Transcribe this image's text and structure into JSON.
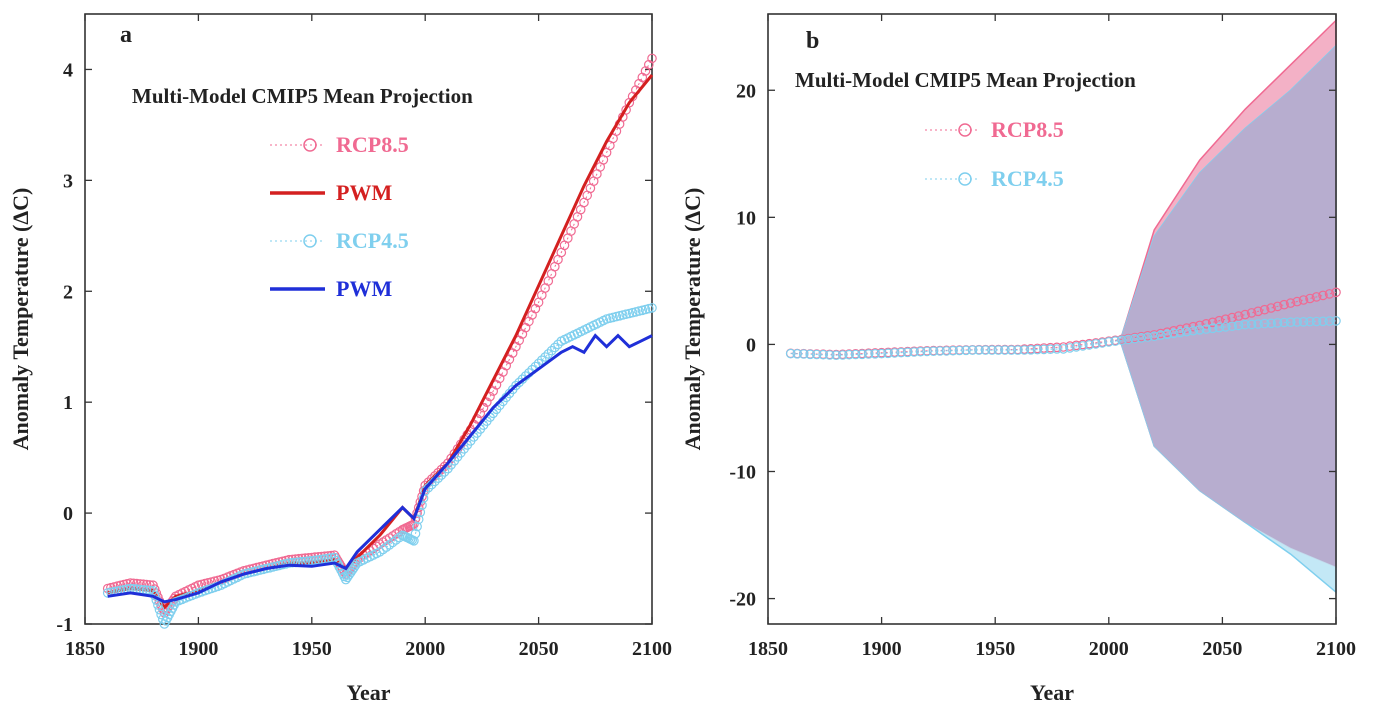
{
  "chart_data": [
    {
      "panel": "a",
      "type": "line",
      "title": "Multi-Model CMIP5 Mean Projection",
      "xlabel": "Year",
      "ylabel": "Anomaly Temperature (ΔC)",
      "xlim": [
        1850,
        2100
      ],
      "ylim": [
        -1,
        4.5
      ],
      "xticks": [
        1850,
        1900,
        1950,
        2000,
        2050,
        2100
      ],
      "yticks": [
        -1,
        0,
        1,
        2,
        3,
        4
      ],
      "legend": "upper-left",
      "series": [
        {
          "name": "RCP8.5",
          "color": "#f06a92",
          "style": "circles",
          "x": [
            1860,
            1870,
            1880,
            1885,
            1890,
            1900,
            1910,
            1920,
            1930,
            1940,
            1950,
            1960,
            1965,
            1970,
            1980,
            1990,
            1995,
            2000,
            2010,
            2020,
            2030,
            2040,
            2050,
            2060,
            2070,
            2080,
            2090,
            2100
          ],
          "y": [
            -0.68,
            -0.63,
            -0.65,
            -0.9,
            -0.75,
            -0.65,
            -0.6,
            -0.52,
            -0.47,
            -0.42,
            -0.4,
            -0.38,
            -0.55,
            -0.42,
            -0.28,
            -0.15,
            -0.1,
            0.25,
            0.45,
            0.75,
            1.1,
            1.5,
            1.9,
            2.35,
            2.8,
            3.25,
            3.7,
            4.1
          ]
        },
        {
          "name": "PWM",
          "color": "#d42020",
          "style": "line",
          "x": [
            1860,
            1870,
            1880,
            1885,
            1890,
            1900,
            1910,
            1920,
            1930,
            1940,
            1950,
            1960,
            1965,
            1970,
            1980,
            1990,
            1995,
            2000,
            2010,
            2020,
            2030,
            2040,
            2050,
            2060,
            2070,
            2080,
            2090,
            2100
          ],
          "y": [
            -0.72,
            -0.68,
            -0.7,
            -0.85,
            -0.75,
            -0.7,
            -0.62,
            -0.55,
            -0.5,
            -0.45,
            -0.45,
            -0.42,
            -0.5,
            -0.4,
            -0.2,
            0.05,
            -0.05,
            0.25,
            0.45,
            0.8,
            1.2,
            1.6,
            2.05,
            2.5,
            2.95,
            3.35,
            3.7,
            3.95
          ]
        },
        {
          "name": "RCP4.5",
          "color": "#7fcfee",
          "style": "circles",
          "x": [
            1860,
            1870,
            1880,
            1885,
            1890,
            1900,
            1910,
            1920,
            1930,
            1940,
            1950,
            1960,
            1965,
            1970,
            1980,
            1990,
            1995,
            2000,
            2010,
            2020,
            2030,
            2040,
            2050,
            2060,
            2070,
            2080,
            2090,
            2100
          ],
          "y": [
            -0.72,
            -0.68,
            -0.7,
            -1.0,
            -0.8,
            -0.72,
            -0.65,
            -0.55,
            -0.5,
            -0.45,
            -0.43,
            -0.4,
            -0.6,
            -0.45,
            -0.35,
            -0.2,
            -0.25,
            0.2,
            0.4,
            0.65,
            0.9,
            1.15,
            1.35,
            1.55,
            1.65,
            1.75,
            1.8,
            1.85
          ]
        },
        {
          "name": "PWM",
          "color": "#1f2fd8",
          "style": "line",
          "x": [
            1860,
            1870,
            1880,
            1885,
            1890,
            1900,
            1910,
            1920,
            1930,
            1940,
            1950,
            1960,
            1965,
            1970,
            1980,
            1990,
            1995,
            2000,
            2010,
            2020,
            2030,
            2040,
            2050,
            2060,
            2065,
            2070,
            2075,
            2080,
            2085,
            2090,
            2095,
            2100
          ],
          "y": [
            -0.75,
            -0.72,
            -0.75,
            -0.8,
            -0.78,
            -0.72,
            -0.62,
            -0.55,
            -0.5,
            -0.47,
            -0.48,
            -0.45,
            -0.5,
            -0.35,
            -0.15,
            0.05,
            -0.05,
            0.22,
            0.45,
            0.7,
            0.95,
            1.15,
            1.3,
            1.45,
            1.5,
            1.45,
            1.6,
            1.5,
            1.6,
            1.5,
            1.55,
            1.6
          ]
        }
      ]
    },
    {
      "panel": "b",
      "type": "area",
      "title": "Multi-Model CMIP5 Mean Projection",
      "xlabel": "Year",
      "ylabel": "Anomaly Temperature (ΔC)",
      "xlim": [
        1850,
        2100
      ],
      "ylim": [
        -22,
        26
      ],
      "xticks": [
        1850,
        1900,
        1950,
        2000,
        2050,
        2100
      ],
      "yticks": [
        -20,
        -10,
        0,
        10,
        20
      ],
      "legend": "upper-left",
      "series": [
        {
          "name": "RCP8.5",
          "color": "#f06a92",
          "style": "circles",
          "x": [
            1860,
            1880,
            1900,
            1920,
            1940,
            1960,
            1980,
            2000,
            2020,
            2040,
            2060,
            2080,
            2100
          ],
          "y": [
            -0.7,
            -0.8,
            -0.65,
            -0.5,
            -0.42,
            -0.4,
            -0.2,
            0.25,
            0.75,
            1.5,
            2.35,
            3.25,
            4.1
          ],
          "band_x": [
            2005,
            2020,
            2040,
            2060,
            2080,
            2100
          ],
          "band_upper": [
            0.3,
            9,
            14.5,
            18.5,
            22,
            25.5
          ],
          "band_lower": [
            0.3,
            -8,
            -11.5,
            -14,
            -16,
            -17.5
          ]
        },
        {
          "name": "RCP4.5",
          "color": "#7fcfee",
          "style": "circles",
          "x": [
            1860,
            1880,
            1900,
            1920,
            1940,
            1960,
            1980,
            2000,
            2020,
            2040,
            2060,
            2080,
            2100
          ],
          "y": [
            -0.72,
            -0.85,
            -0.72,
            -0.55,
            -0.45,
            -0.45,
            -0.35,
            0.2,
            0.65,
            1.15,
            1.55,
            1.75,
            1.85
          ],
          "band_x": [
            2005,
            2020,
            2040,
            2060,
            2080,
            2100
          ],
          "band_upper": [
            0.3,
            8.5,
            13.5,
            17,
            20,
            23.5
          ],
          "band_lower": [
            0.3,
            -8,
            -11.5,
            -14,
            -16.5,
            -19.5
          ]
        }
      ]
    }
  ],
  "panels": [
    {
      "label": "a",
      "title": "Multi-Model CMIP5 Mean Projection",
      "xlabel": "Year",
      "ylabel": "Anomaly Temperature (ΔC)",
      "legend": [
        {
          "text": "RCP8.5",
          "color": "#f06a92",
          "marker": "circle"
        },
        {
          "text": "PWM",
          "color": "#d42020",
          "marker": "line"
        },
        {
          "text": "RCP4.5",
          "color": "#7fcfee",
          "marker": "circle"
        },
        {
          "text": "PWM",
          "color": "#1f2fd8",
          "marker": "line"
        }
      ]
    },
    {
      "label": "b",
      "title": "Multi-Model CMIP5 Mean Projection",
      "xlabel": "Year",
      "ylabel": "Anomaly Temperature (ΔC)",
      "legend": [
        {
          "text": "RCP8.5",
          "color": "#f06a92",
          "marker": "circle"
        },
        {
          "text": "RCP4.5",
          "color": "#7fcfee",
          "marker": "circle"
        }
      ]
    }
  ]
}
